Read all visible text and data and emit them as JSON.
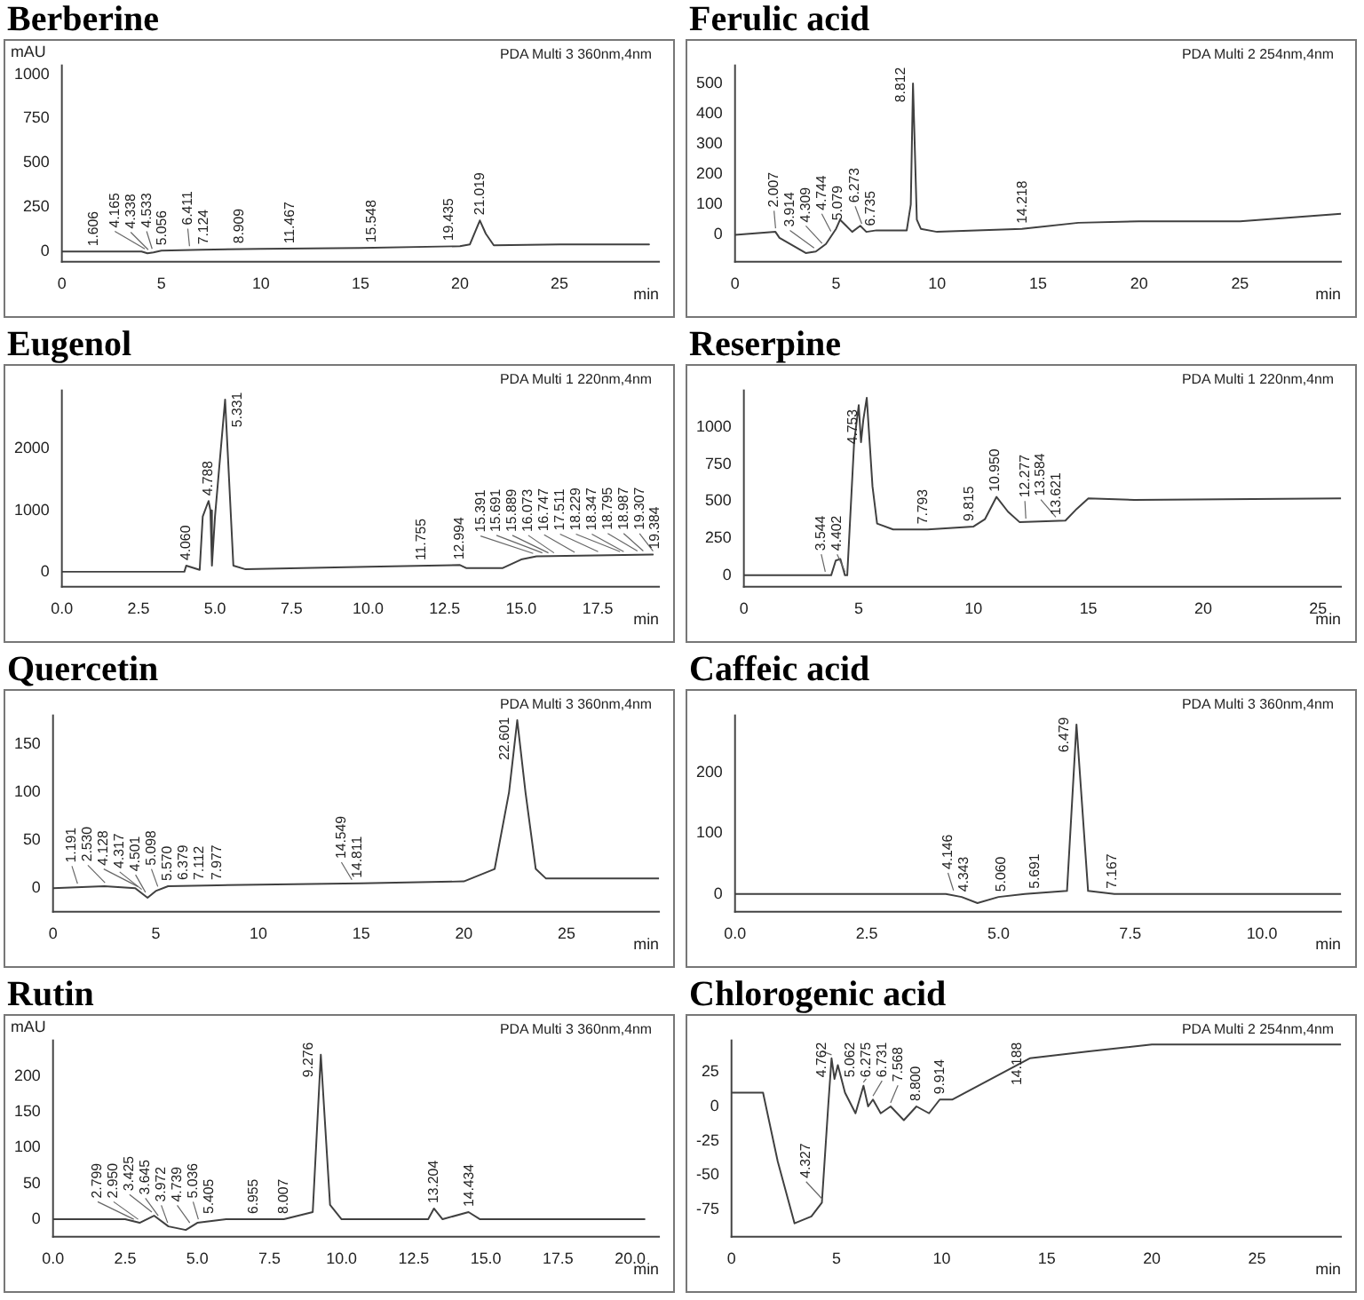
{
  "chart_data": [
    {
      "type": "line",
      "title": "Berberine",
      "xlabel": "min",
      "ylabel": "mAU",
      "xlim": [
        0,
        30
      ],
      "xticks": [
        0,
        5,
        10,
        15,
        20,
        25
      ],
      "ylim": [
        -60,
        1050
      ],
      "yticks": [
        0,
        250,
        500,
        750,
        1000
      ],
      "x": [
        0,
        1.6,
        4.0,
        4.3,
        4.6,
        5.0,
        7,
        10,
        15,
        20,
        20.5,
        21.0,
        21.3,
        21.7,
        25,
        29.5
      ],
      "series": [
        {
          "color": "#404040",
          "values": [
            0,
            0,
            0,
            -10,
            -5,
            5,
            10,
            15,
            20,
            30,
            40,
            175,
            100,
            35,
            40,
            40
          ]
        }
      ],
      "annotations": [
        "PDA Multi 3 360nm,4nm",
        {
          "text": "1.606",
          "x": 1.606,
          "y": 0
        },
        {
          "text": "4.165",
          "x": 4.165,
          "y": -5
        },
        {
          "text": "4.338",
          "x": 4.338,
          "y": -10
        },
        {
          "text": "4.533",
          "x": 4.533,
          "y": -5
        },
        {
          "text": "5.056",
          "x": 5.056,
          "y": 5
        },
        {
          "text": "6.411",
          "x": 6.411,
          "y": 10
        },
        {
          "text": "7.124",
          "x": 7.124,
          "y": 10
        },
        {
          "text": "8.909",
          "x": 8.909,
          "y": 15
        },
        {
          "text": "11.467",
          "x": 11.467,
          "y": 15
        },
        {
          "text": "15.548",
          "x": 15.548,
          "y": 20
        },
        {
          "text": "19.435",
          "x": 19.435,
          "y": 30
        },
        {
          "text": "21.019",
          "x": 21.019,
          "y": 175
        }
      ]
    },
    {
      "type": "line",
      "title": "Ferulic acid",
      "xlabel": "min",
      "xlim": [
        0,
        30
      ],
      "xticks": [
        0,
        5,
        10,
        15,
        20,
        25
      ],
      "ylim": [
        -90,
        560
      ],
      "yticks": [
        0,
        100,
        200,
        300,
        400,
        500
      ],
      "x": [
        0,
        2,
        2.2,
        3.5,
        4.0,
        4.5,
        5,
        5.2,
        5.5,
        5.8,
        6.2,
        6.5,
        7,
        8.5,
        8.7,
        8.81,
        9.0,
        9.2,
        10,
        14.2,
        17,
        20,
        25,
        30
      ],
      "series": [
        {
          "color": "#404040",
          "values": [
            0,
            10,
            -10,
            -60,
            -55,
            -30,
            20,
            50,
            30,
            10,
            30,
            10,
            15,
            15,
            100,
            500,
            50,
            20,
            10,
            20,
            40,
            45,
            45,
            70
          ]
        }
      ],
      "annotations": [
        "PDA Multi 2 254nm,4nm",
        {
          "text": "2.007",
          "x": 2.007,
          "y": 10
        },
        {
          "text": "3.914",
          "x": 3.914,
          "y": -55
        },
        {
          "text": "4.309",
          "x": 4.309,
          "y": -40
        },
        {
          "text": "4.744",
          "x": 4.744,
          "y": 0
        },
        {
          "text": "5.079",
          "x": 5.079,
          "y": 30
        },
        {
          "text": "6.273",
          "x": 6.273,
          "y": 25
        },
        {
          "text": "6.735",
          "x": 6.735,
          "y": 12
        },
        {
          "text": "8.812",
          "x": 8.812,
          "y": 500
        },
        {
          "text": "14.218",
          "x": 14.218,
          "y": 20
        }
      ]
    },
    {
      "type": "line",
      "title": "Eugenol",
      "xlabel": "min",
      "xlim": [
        0,
        19.5
      ],
      "xticks": [
        {
          "value": 0,
          "label": "0.0"
        },
        2.5,
        {
          "value": 5,
          "label": "5.0"
        },
        7.5,
        {
          "value": 10,
          "label": "10.0"
        },
        12.5,
        {
          "value": 15,
          "label": "15.0"
        },
        17.5
      ],
      "ylim": [
        -250,
        2950
      ],
      "yticks": [
        0,
        1000,
        2000
      ],
      "x": [
        0,
        4.0,
        4.06,
        4.5,
        4.6,
        4.75,
        4.79,
        4.85,
        4.9,
        5.0,
        5.33,
        5.6,
        6,
        10,
        13,
        13.2,
        14.4,
        15,
        15.5,
        19.3
      ],
      "series": [
        {
          "color": "#404040",
          "values": [
            0,
            0,
            100,
            30,
            900,
            1100,
            1150,
            1000,
            100,
            900,
            2800,
            100,
            40,
            80,
            110,
            60,
            60,
            200,
            250,
            280
          ]
        }
      ],
      "annotations": [
        "PDA Multi 1 220nm,4nm",
        {
          "text": "4.060",
          "x": 4.06,
          "y": 100
        },
        {
          "text": "4.788",
          "x": 4.788,
          "y": 1150
        },
        {
          "text": "5.331",
          "x": 5.331,
          "y": 2800
        },
        {
          "text": "11.755",
          "x": 11.755,
          "y": 100
        },
        {
          "text": "12.994",
          "x": 12.994,
          "y": 110
        },
        {
          "text": "15.391",
          "x": 15.391,
          "y": 240
        },
        {
          "text": "15.691",
          "x": 15.691,
          "y": 250
        },
        {
          "text": "15.889",
          "x": 15.889,
          "y": 250
        },
        {
          "text": "16.073",
          "x": 16.073,
          "y": 250
        },
        {
          "text": "16.747",
          "x": 16.747,
          "y": 260
        },
        {
          "text": "17.511",
          "x": 17.511,
          "y": 270
        },
        {
          "text": "18.229",
          "x": 18.229,
          "y": 270
        },
        {
          "text": "18.347",
          "x": 18.347,
          "y": 270
        },
        {
          "text": "18.795",
          "x": 18.795,
          "y": 280
        },
        {
          "text": "18.987",
          "x": 18.987,
          "y": 280
        },
        {
          "text": "19.307",
          "x": 19.307,
          "y": 280
        },
        {
          "text": "19.384",
          "x": 19.384,
          "y": 280
        }
      ]
    },
    {
      "type": "line",
      "title": "Reserpine",
      "xlabel": "min",
      "xlim": [
        0,
        26
      ],
      "xticks": [
        0,
        5,
        10,
        15,
        20,
        25
      ],
      "ylim": [
        -80,
        1250
      ],
      "yticks": [
        0,
        250,
        500,
        750,
        1000
      ],
      "x": [
        0,
        3.5,
        3.8,
        4.0,
        4.2,
        4.4,
        4.5,
        4.8,
        5.0,
        5.1,
        5.2,
        5.35,
        5.6,
        5.8,
        6.5,
        8,
        10,
        10.5,
        11,
        11.5,
        12,
        14,
        14.5,
        15,
        17,
        26
      ],
      "series": [
        {
          "color": "#404040",
          "values": [
            0,
            0,
            0,
            100,
            110,
            0,
            0,
            900,
            1150,
            900,
            1050,
            1200,
            600,
            350,
            310,
            310,
            330,
            380,
            530,
            430,
            360,
            370,
            450,
            520,
            510,
            520
          ]
        }
      ],
      "annotations": [
        "PDA Multi 1 220nm,4nm",
        {
          "text": "3.544",
          "x": 3.544,
          "y": 0
        },
        {
          "text": "4.402",
          "x": 4.402,
          "y": 0
        },
        {
          "text": "4.753",
          "x": 4.753,
          "y": 850
        },
        {
          "text": "7.793",
          "x": 7.793,
          "y": 310
        },
        {
          "text": "9.815",
          "x": 9.815,
          "y": 330
        },
        {
          "text": "10.950",
          "x": 10.95,
          "y": 530
        },
        {
          "text": "12.277",
          "x": 12.277,
          "y": 360
        },
        {
          "text": "13.584",
          "x": 13.584,
          "y": 370
        },
        {
          "text": "13.621",
          "x": 13.621,
          "y": 370
        }
      ]
    },
    {
      "type": "line",
      "title": "Quercetin",
      "xlabel": "min",
      "xlim": [
        0,
        29.5
      ],
      "xticks": [
        0,
        5,
        10,
        15,
        20,
        25
      ],
      "ylim": [
        -25,
        180
      ],
      "yticks": [
        0,
        50,
        100,
        150
      ],
      "x": [
        0,
        2.5,
        4.0,
        4.6,
        5.0,
        5.6,
        8,
        15,
        20,
        21.5,
        22.2,
        22.6,
        23.0,
        23.5,
        24,
        29.5
      ],
      "series": [
        {
          "color": "#404040",
          "values": [
            0,
            2,
            0,
            -10,
            -3,
            2,
            3,
            5,
            7,
            20,
            100,
            175,
            100,
            20,
            10,
            10
          ]
        }
      ],
      "annotations": [
        "PDA Multi 3 360nm,4nm",
        {
          "text": "1.191",
          "x": 1.191,
          "y": 1
        },
        {
          "text": "2.530",
          "x": 2.53,
          "y": 2
        },
        {
          "text": "4.128",
          "x": 4.128,
          "y": -2
        },
        {
          "text": "4.317",
          "x": 4.317,
          "y": -5
        },
        {
          "text": "4.501",
          "x": 4.501,
          "y": -8
        },
        {
          "text": "5.098",
          "x": 5.098,
          "y": -2
        },
        {
          "text": "5.570",
          "x": 5.57,
          "y": 2
        },
        {
          "text": "6.379",
          "x": 6.379,
          "y": 3
        },
        {
          "text": "7.112",
          "x": 7.112,
          "y": 3
        },
        {
          "text": "7.977",
          "x": 7.977,
          "y": 3
        },
        {
          "text": "14.549",
          "x": 14.549,
          "y": 5
        },
        {
          "text": "14.811",
          "x": 14.811,
          "y": 5
        },
        {
          "text": "22.601",
          "x": 22.601,
          "y": 175
        }
      ]
    },
    {
      "type": "line",
      "title": "Caffeic acid",
      "xlabel": "min",
      "xlim": [
        0,
        11.5
      ],
      "xticks": [
        {
          "value": 0,
          "label": "0.0"
        },
        2.5,
        {
          "value": 5,
          "label": "5.0"
        },
        7.5,
        {
          "value": 10,
          "label": "10.0"
        }
      ],
      "ylim": [
        -30,
        295
      ],
      "yticks": [
        0,
        100,
        200
      ],
      "x": [
        0,
        4.0,
        4.3,
        4.6,
        5.0,
        5.5,
        6.3,
        6.48,
        6.7,
        7.2,
        11.5
      ],
      "series": [
        {
          "color": "#404040",
          "values": [
            0,
            0,
            -5,
            -15,
            -5,
            0,
            5,
            280,
            5,
            0,
            0
          ]
        }
      ],
      "annotations": [
        "PDA Multi 3 360nm,4nm",
        {
          "text": "4.146",
          "x": 4.146,
          "y": 0
        },
        {
          "text": "4.343",
          "x": 4.343,
          "y": -5
        },
        {
          "text": "5.060",
          "x": 5.06,
          "y": -5
        },
        {
          "text": "5.691",
          "x": 5.691,
          "y": 0
        },
        {
          "text": "6.479",
          "x": 6.479,
          "y": 280
        },
        {
          "text": "7.167",
          "x": 7.167,
          "y": 0
        }
      ]
    },
    {
      "type": "line",
      "title": "Rutin",
      "xlabel": "min",
      "ylabel": "mAU",
      "xlim": [
        0,
        21
      ],
      "xticks": [
        {
          "value": 0,
          "label": "0.0"
        },
        2.5,
        {
          "value": 5,
          "label": "5.0"
        },
        7.5,
        {
          "value": 10,
          "label": "10.0"
        },
        12.5,
        {
          "value": 15,
          "label": "15.0"
        },
        17.5,
        {
          "value": 20,
          "label": "20.0"
        }
      ],
      "ylim": [
        -25,
        250
      ],
      "yticks": [
        0,
        50,
        100,
        150,
        200
      ],
      "x": [
        0,
        2.5,
        3.0,
        3.5,
        4.0,
        4.6,
        5.0,
        6,
        8,
        9.0,
        9.28,
        9.6,
        10,
        13,
        13.2,
        13.5,
        14.4,
        14.8,
        20.5
      ],
      "series": [
        {
          "color": "#404040",
          "values": [
            0,
            0,
            -5,
            5,
            -10,
            -15,
            -5,
            0,
            0,
            10,
            230,
            20,
            0,
            0,
            15,
            0,
            10,
            0,
            0
          ]
        }
      ],
      "annotations": [
        "PDA Multi 3 360nm,4nm",
        {
          "text": "2.799",
          "x": 2.799,
          "y": -5
        },
        {
          "text": "2.950",
          "x": 2.95,
          "y": -5
        },
        {
          "text": "3.425",
          "x": 3.425,
          "y": 5
        },
        {
          "text": "3.645",
          "x": 3.645,
          "y": 0
        },
        {
          "text": "3.972",
          "x": 3.972,
          "y": -10
        },
        {
          "text": "4.739",
          "x": 4.739,
          "y": -10
        },
        {
          "text": "5.036",
          "x": 5.036,
          "y": -5
        },
        {
          "text": "5.405",
          "x": 5.405,
          "y": 0
        },
        {
          "text": "6.955",
          "x": 6.955,
          "y": 0
        },
        {
          "text": "8.007",
          "x": 8.007,
          "y": 0
        },
        {
          "text": "9.276",
          "x": 9.276,
          "y": 230
        },
        {
          "text": "13.204",
          "x": 13.204,
          "y": 15
        },
        {
          "text": "14.434",
          "x": 14.434,
          "y": 10
        }
      ]
    },
    {
      "type": "line",
      "title": "Chlorogenic acid",
      "xlabel": "min",
      "xlim": [
        0,
        29
      ],
      "xticks": [
        0,
        5,
        10,
        15,
        20,
        25
      ],
      "ylim": [
        -95,
        48
      ],
      "yticks": [
        -75,
        -50,
        -25,
        0,
        25
      ],
      "x": [
        0,
        1.5,
        2.2,
        3,
        3.8,
        4.3,
        4.6,
        4.76,
        4.9,
        5.06,
        5.4,
        5.9,
        6.28,
        6.5,
        6.73,
        7.1,
        7.57,
        8.2,
        8.8,
        9.4,
        9.91,
        10.5,
        14.19,
        17,
        20,
        29
      ],
      "series": [
        {
          "color": "#404040",
          "values": [
            10,
            10,
            -40,
            -85,
            -80,
            -70,
            0,
            35,
            20,
            30,
            10,
            -5,
            15,
            0,
            5,
            -5,
            0,
            -10,
            0,
            -5,
            5,
            5,
            35,
            40,
            45,
            45
          ]
        }
      ],
      "annotations": [
        "PDA Multi 2 254nm,4nm",
        {
          "text": "4.327",
          "x": 4.327,
          "y": -70
        },
        {
          "text": "4.762",
          "x": 4.762,
          "y": 35
        },
        {
          "text": "5.062",
          "x": 5.062,
          "y": 30
        },
        {
          "text": "6.275",
          "x": 6.275,
          "y": 15
        },
        {
          "text": "6.731",
          "x": 6.731,
          "y": 5
        },
        {
          "text": "7.568",
          "x": 7.568,
          "y": 0
        },
        {
          "text": "8.800",
          "x": 8.8,
          "y": 0
        },
        {
          "text": "9.914",
          "x": 9.914,
          "y": 5
        },
        {
          "text": "14.188",
          "x": 14.188,
          "y": 35
        }
      ]
    }
  ]
}
